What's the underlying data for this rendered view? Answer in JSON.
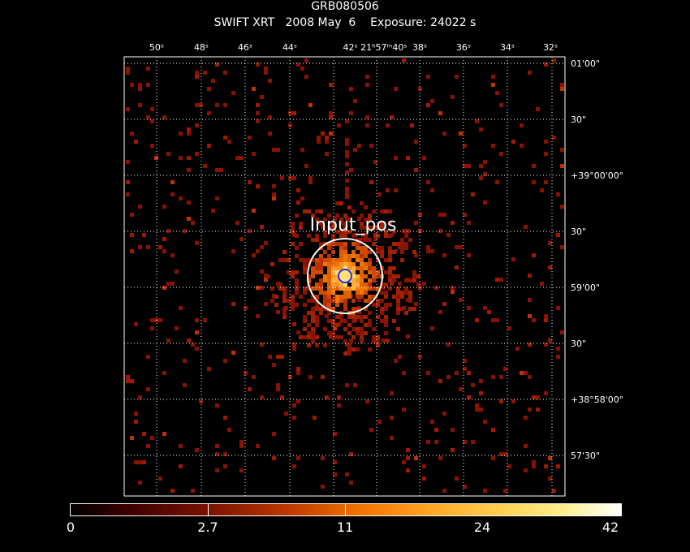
{
  "header": {
    "title": "GRB080506",
    "subtitle": "SWIFT XRT   2008 May  6    Exposure: 24022 s"
  },
  "image": {
    "source_label": "Input_pos",
    "ra_ticks": [
      "50ˢ",
      "48ˢ",
      "46ˢ",
      "44ˢ",
      "42ˢ 21ʰ57ᵐ40ˢ",
      "38ˢ",
      "36ˢ",
      "34ˢ",
      "32ˢ"
    ],
    "dec_ticks": [
      "01'00\"",
      "30\"",
      "+39°00'00\"",
      "30\"",
      "59'00\"",
      "30\"",
      "+38°58'00\"",
      "57'30\""
    ]
  },
  "colorbar": {
    "labels": [
      "0",
      "2.7",
      "11",
      "24",
      "42"
    ]
  },
  "colors": {
    "accent_circle": "#ffffff",
    "inner_circle": "#2030ff",
    "grid": "#ffffff"
  }
}
